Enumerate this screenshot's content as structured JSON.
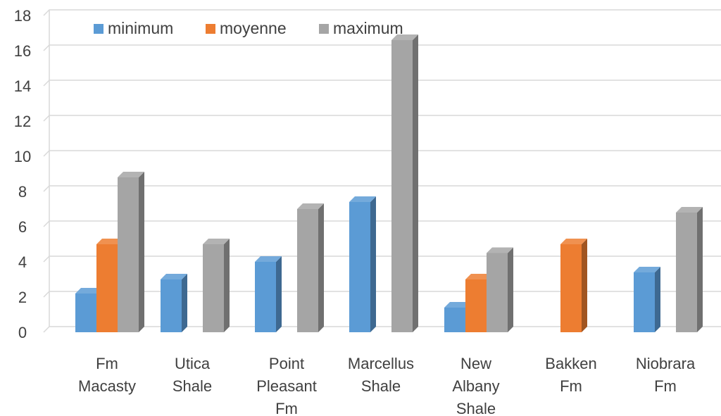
{
  "chart_data": {
    "type": "bar",
    "title": "",
    "xlabel": "",
    "ylabel": "",
    "ylim": [
      0,
      18
    ],
    "yticks": [
      0,
      2,
      4,
      6,
      8,
      10,
      12,
      14,
      16,
      18
    ],
    "grid": true,
    "legend_position": "top-left",
    "style": "3d-clustered-column",
    "categories": [
      [
        "Fm",
        "Macasty"
      ],
      [
        "Utica",
        "Shale"
      ],
      [
        "Point",
        "Pleasant",
        "Fm"
      ],
      [
        "Marcellus",
        "Shale"
      ],
      [
        "New",
        "Albany",
        "Shale"
      ],
      [
        "Bakken",
        "Fm"
      ],
      [
        "Niobrara",
        "Fm"
      ]
    ],
    "series": [
      {
        "name": "minimum",
        "color": "#5B9BD5",
        "values": [
          2.2,
          3.0,
          4.0,
          7.4,
          1.4,
          null,
          3.4
        ]
      },
      {
        "name": "moyenne",
        "color": "#ED7D31",
        "values": [
          5.0,
          null,
          null,
          null,
          3.0,
          5.0,
          null
        ]
      },
      {
        "name": "maximum",
        "color": "#A5A5A5",
        "values": [
          8.8,
          5.0,
          7.0,
          16.6,
          4.5,
          null,
          6.8
        ]
      }
    ]
  }
}
